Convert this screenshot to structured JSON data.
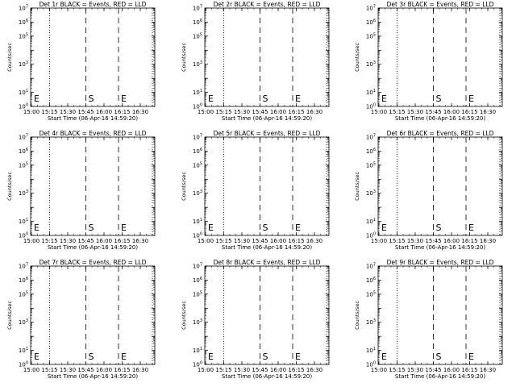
{
  "chart_data": {
    "type": "line",
    "layout": "3x3 grid",
    "panels": [
      {
        "title": "Det 1r BLACK = Events, RED = LLD",
        "marks": [
          {
            "label": "E",
            "time": "15:00"
          },
          {
            "label": "S",
            "time": "15:45"
          },
          {
            "label": "E",
            "time": "16:12"
          }
        ]
      },
      {
        "title": "Det 2r BLACK = Events, RED = LLD",
        "marks": [
          {
            "label": "E",
            "time": "15:00"
          },
          {
            "label": "S",
            "time": "15:45"
          },
          {
            "label": "E",
            "time": "16:12"
          }
        ]
      },
      {
        "title": "Det 3r BLACK = Events, RED = LLD",
        "marks": [
          {
            "label": "E",
            "time": "15:00"
          },
          {
            "label": "S",
            "time": "15:45"
          },
          {
            "label": "E",
            "time": "16:12"
          }
        ]
      },
      {
        "title": "Det 4r BLACK = Events, RED = LLD",
        "marks": [
          {
            "label": "E",
            "time": "15:00"
          },
          {
            "label": "S",
            "time": "15:45"
          },
          {
            "label": "E",
            "time": "16:12"
          }
        ]
      },
      {
        "title": "Det 5r BLACK = Events, RED = LLD",
        "marks": [
          {
            "label": "E",
            "time": "15:00"
          },
          {
            "label": "S",
            "time": "15:45"
          },
          {
            "label": "E",
            "time": "16:12"
          }
        ]
      },
      {
        "title": "Det 6r BLACK = Events, RED = LLD",
        "marks": [
          {
            "label": "E",
            "time": "15:00"
          },
          {
            "label": "S",
            "time": "15:45"
          },
          {
            "label": "E",
            "time": "16:12"
          }
        ]
      },
      {
        "title": "Det 7r BLACK = Events, RED = LLD",
        "marks": [
          {
            "label": "E",
            "time": "15:00"
          },
          {
            "label": "S",
            "time": "15:45"
          },
          {
            "label": "E",
            "time": "16:12"
          }
        ]
      },
      {
        "title": "Det 8r BLACK = Events, RED = LLD",
        "marks": [
          {
            "label": "E",
            "time": "15:00"
          },
          {
            "label": "S",
            "time": "15:45"
          },
          {
            "label": "E",
            "time": "16:12"
          }
        ]
      },
      {
        "title": "Det 9r BLACK = Events, RED = LLD",
        "marks": [
          {
            "label": "E",
            "time": "15:00"
          },
          {
            "label": "S",
            "time": "15:45"
          },
          {
            "label": "E",
            "time": "16:12"
          }
        ]
      }
    ],
    "xlabel": "Start Time (06-Apr-16 14:59:20)",
    "ylabel": "Counts/sec",
    "x_ticks": [
      "15:00",
      "15:15",
      "15:30",
      "15:45",
      "16:00",
      "16:15",
      "16:30"
    ],
    "xlim": [
      "14:59:20",
      "16:42"
    ],
    "y_scale": "log",
    "ylim": [
      1,
      10000000
    ],
    "y_ticks": [
      {
        "base": "10",
        "exp": "0"
      },
      {
        "base": "10",
        "exp": "1"
      },
      {
        "base": "10",
        "exp": "3"
      },
      {
        "base": "10",
        "exp": "5"
      },
      {
        "base": "10",
        "exp": "6"
      },
      {
        "base": "10",
        "exp": "7"
      }
    ],
    "dotted_lines": [
      "15:15",
      "16:40"
    ],
    "dashed_lines": [
      "15:45",
      "16:12"
    ],
    "series": [],
    "colors": {
      "events": "#000000",
      "lld": "#ff0000",
      "axes": "#000000"
    }
  }
}
